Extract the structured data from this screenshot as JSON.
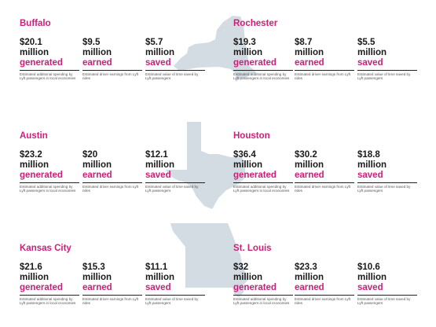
{
  "colors": {
    "accent": "#cc1f7a",
    "text": "#1a1a1a",
    "state_fill": "#d3dbe3"
  },
  "states": [
    {
      "name": "new-york-state-shape"
    },
    {
      "name": "texas-state-shape"
    },
    {
      "name": "missouri-state-shape"
    }
  ],
  "cities": [
    {
      "name": "Buffalo",
      "stats": [
        {
          "amount": "$20.1",
          "unit": "million",
          "label": "generated",
          "desc": "Estimated additional spending by Lyft passengers in local economies"
        },
        {
          "amount": "$9.5",
          "unit": "million",
          "label": "earned",
          "desc": "Estimated driver earnings from Lyft rides"
        },
        {
          "amount": "$5.7",
          "unit": "million",
          "label": "saved",
          "desc": "Estimated value of time saved by Lyft passengers"
        }
      ]
    },
    {
      "name": "Rochester",
      "stats": [
        {
          "amount": "$19.3",
          "unit": "million",
          "label": "generated",
          "desc": "Estimated additional spending by Lyft passengers in local economies"
        },
        {
          "amount": "$8.7",
          "unit": "million",
          "label": "earned",
          "desc": "Estimated driver earnings from Lyft rides"
        },
        {
          "amount": "$5.5",
          "unit": "million",
          "label": "saved",
          "desc": "Estimated value of time saved by Lyft passengers"
        }
      ]
    },
    {
      "name": "Austin",
      "stats": [
        {
          "amount": "$23.2",
          "unit": "million",
          "label": "generated",
          "desc": "Estimated additional spending by Lyft passengers in local economies"
        },
        {
          "amount": "$20",
          "unit": "million",
          "label": "earned",
          "desc": "Estimated driver earnings from Lyft rides"
        },
        {
          "amount": "$12.1",
          "unit": "million",
          "label": "saved",
          "desc": "Estimated value of time saved by Lyft passengers"
        }
      ]
    },
    {
      "name": "Houston",
      "stats": [
        {
          "amount": "$36.4",
          "unit": "million",
          "label": "generated",
          "desc": "Estimated additional spending by Lyft passengers in local economies"
        },
        {
          "amount": "$30.2",
          "unit": "million",
          "label": "earned",
          "desc": "Estimated driver earnings from Lyft rides"
        },
        {
          "amount": "$18.8",
          "unit": "million",
          "label": "saved",
          "desc": "Estimated value of time saved by Lyft passengers"
        }
      ]
    },
    {
      "name": "Kansas City",
      "stats": [
        {
          "amount": "$21.6",
          "unit": "million",
          "label": "generated",
          "desc": "Estimated additional spending by Lyft passengers in local economies"
        },
        {
          "amount": "$15.3",
          "unit": "million",
          "label": "earned",
          "desc": "Estimated driver earnings from Lyft rides"
        },
        {
          "amount": "$11.1",
          "unit": "million",
          "label": "saved",
          "desc": "Estimated value of time saved by Lyft passengers"
        }
      ]
    },
    {
      "name": "St. Louis",
      "stats": [
        {
          "amount": "$32",
          "unit": "million",
          "label": "generated",
          "desc": "Estimated additional spending by Lyft passengers in local economies"
        },
        {
          "amount": "$23.3",
          "unit": "million",
          "label": "earned",
          "desc": "Estimated driver earnings from Lyft rides"
        },
        {
          "amount": "$10.6",
          "unit": "million",
          "label": "saved",
          "desc": "Estimated value of time saved by Lyft passengers"
        }
      ]
    }
  ]
}
